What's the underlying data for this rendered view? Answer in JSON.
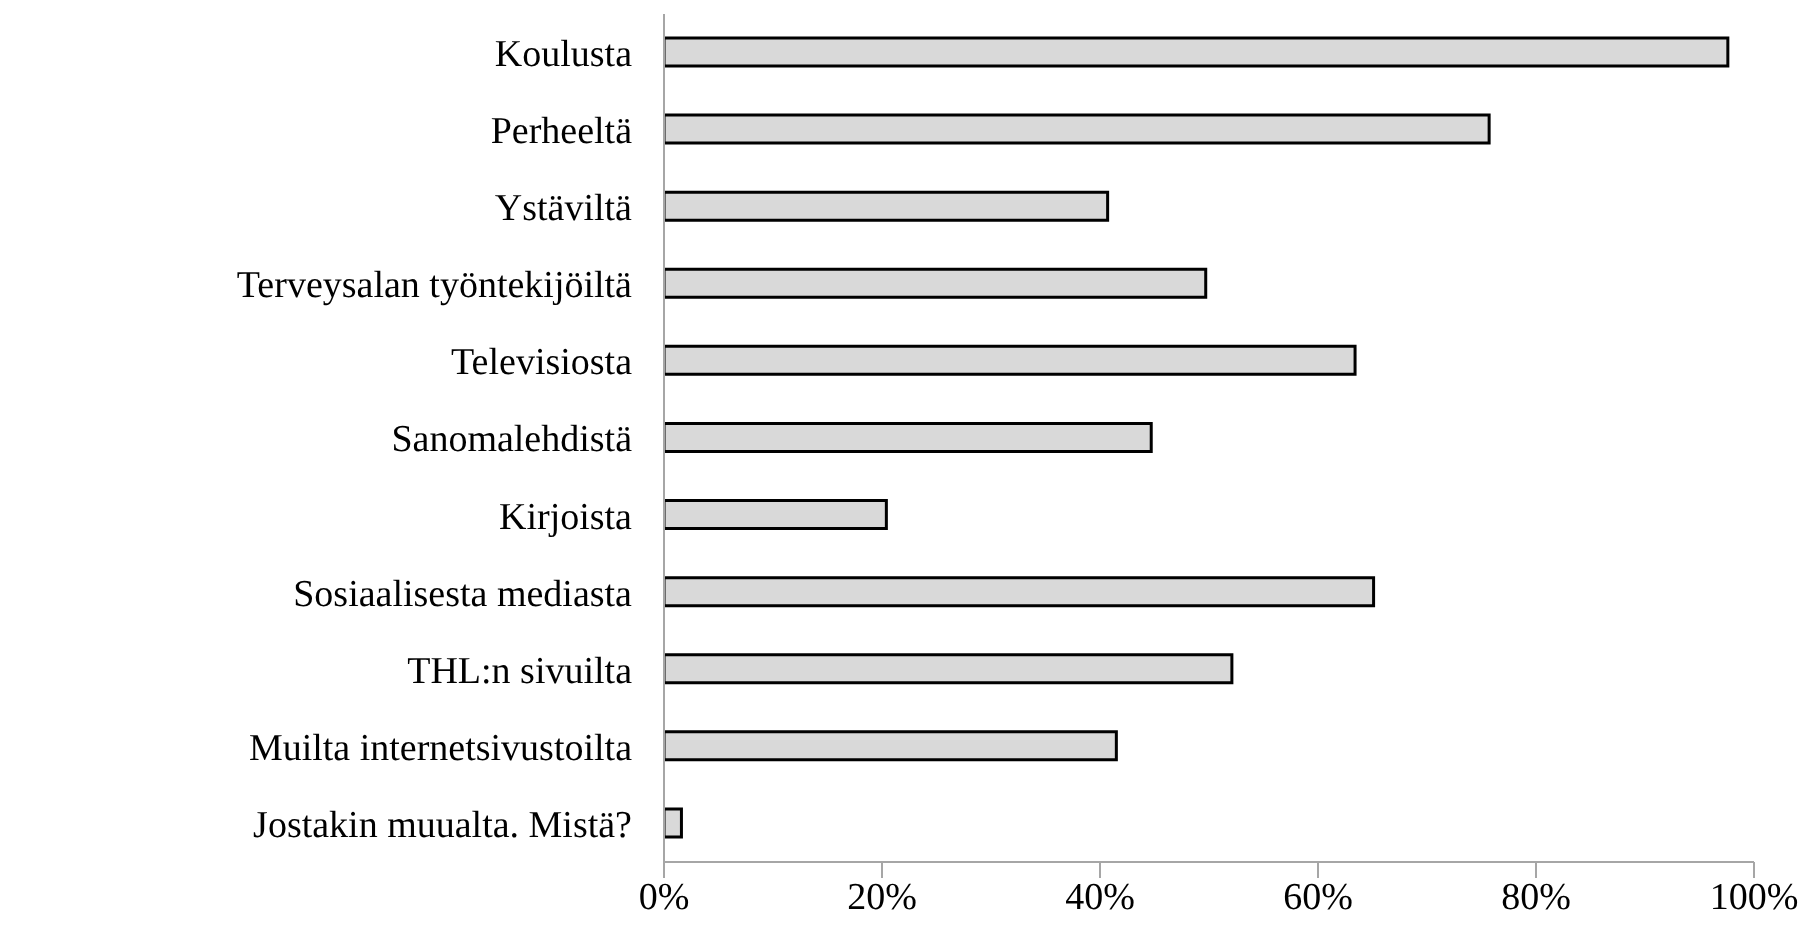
{
  "chart_data": {
    "type": "bar",
    "orientation": "horizontal",
    "categories": [
      "Koulusta",
      "Perheeltä",
      "Ystäviltä",
      "Terveysalan työntekijöiltä",
      "Televisiosta",
      "Sanomalehdistä",
      "Kirjoista",
      "Sosiaalisesta mediasta",
      "THL:n sivuilta",
      "Muilta internetsivustoilta",
      "Jostakin muualta. Mistä?"
    ],
    "values": [
      97.6,
      75.7,
      40.7,
      49.7,
      63.4,
      44.7,
      20.4,
      65.1,
      52.1,
      41.5,
      1.6
    ],
    "color": "#d9d9d9",
    "xlim": [
      0,
      100
    ],
    "xticks": [
      {
        "value": 0,
        "label": "0%"
      },
      {
        "value": 20,
        "label": "20%"
      },
      {
        "value": 40,
        "label": "40%"
      },
      {
        "value": 60,
        "label": "60%"
      },
      {
        "value": 80,
        "label": "80%"
      },
      {
        "value": 100,
        "label": "100%"
      }
    ],
    "grid": false,
    "legend": false
  }
}
